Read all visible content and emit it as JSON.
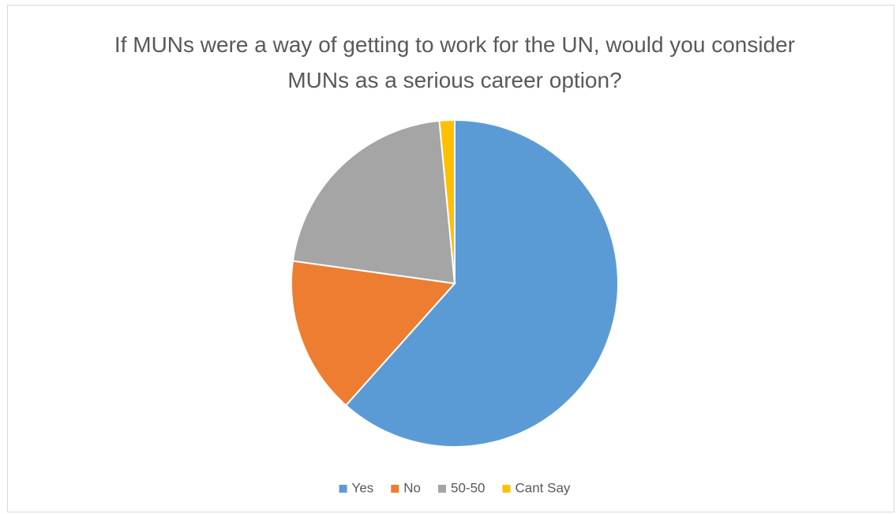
{
  "chart_data": {
    "type": "pie",
    "title": "If MUNs were a way of getting to work for the UN, would you consider MUNs as a serious career option?",
    "categories": [
      "Yes",
      "No",
      "50-50",
      "Cant Say"
    ],
    "values": [
      61.6,
      15.6,
      21.3,
      1.5
    ],
    "colors": [
      "#5b9bd5",
      "#ed7d31",
      "#a5a5a5",
      "#ffc000"
    ],
    "legend": "bottom"
  }
}
